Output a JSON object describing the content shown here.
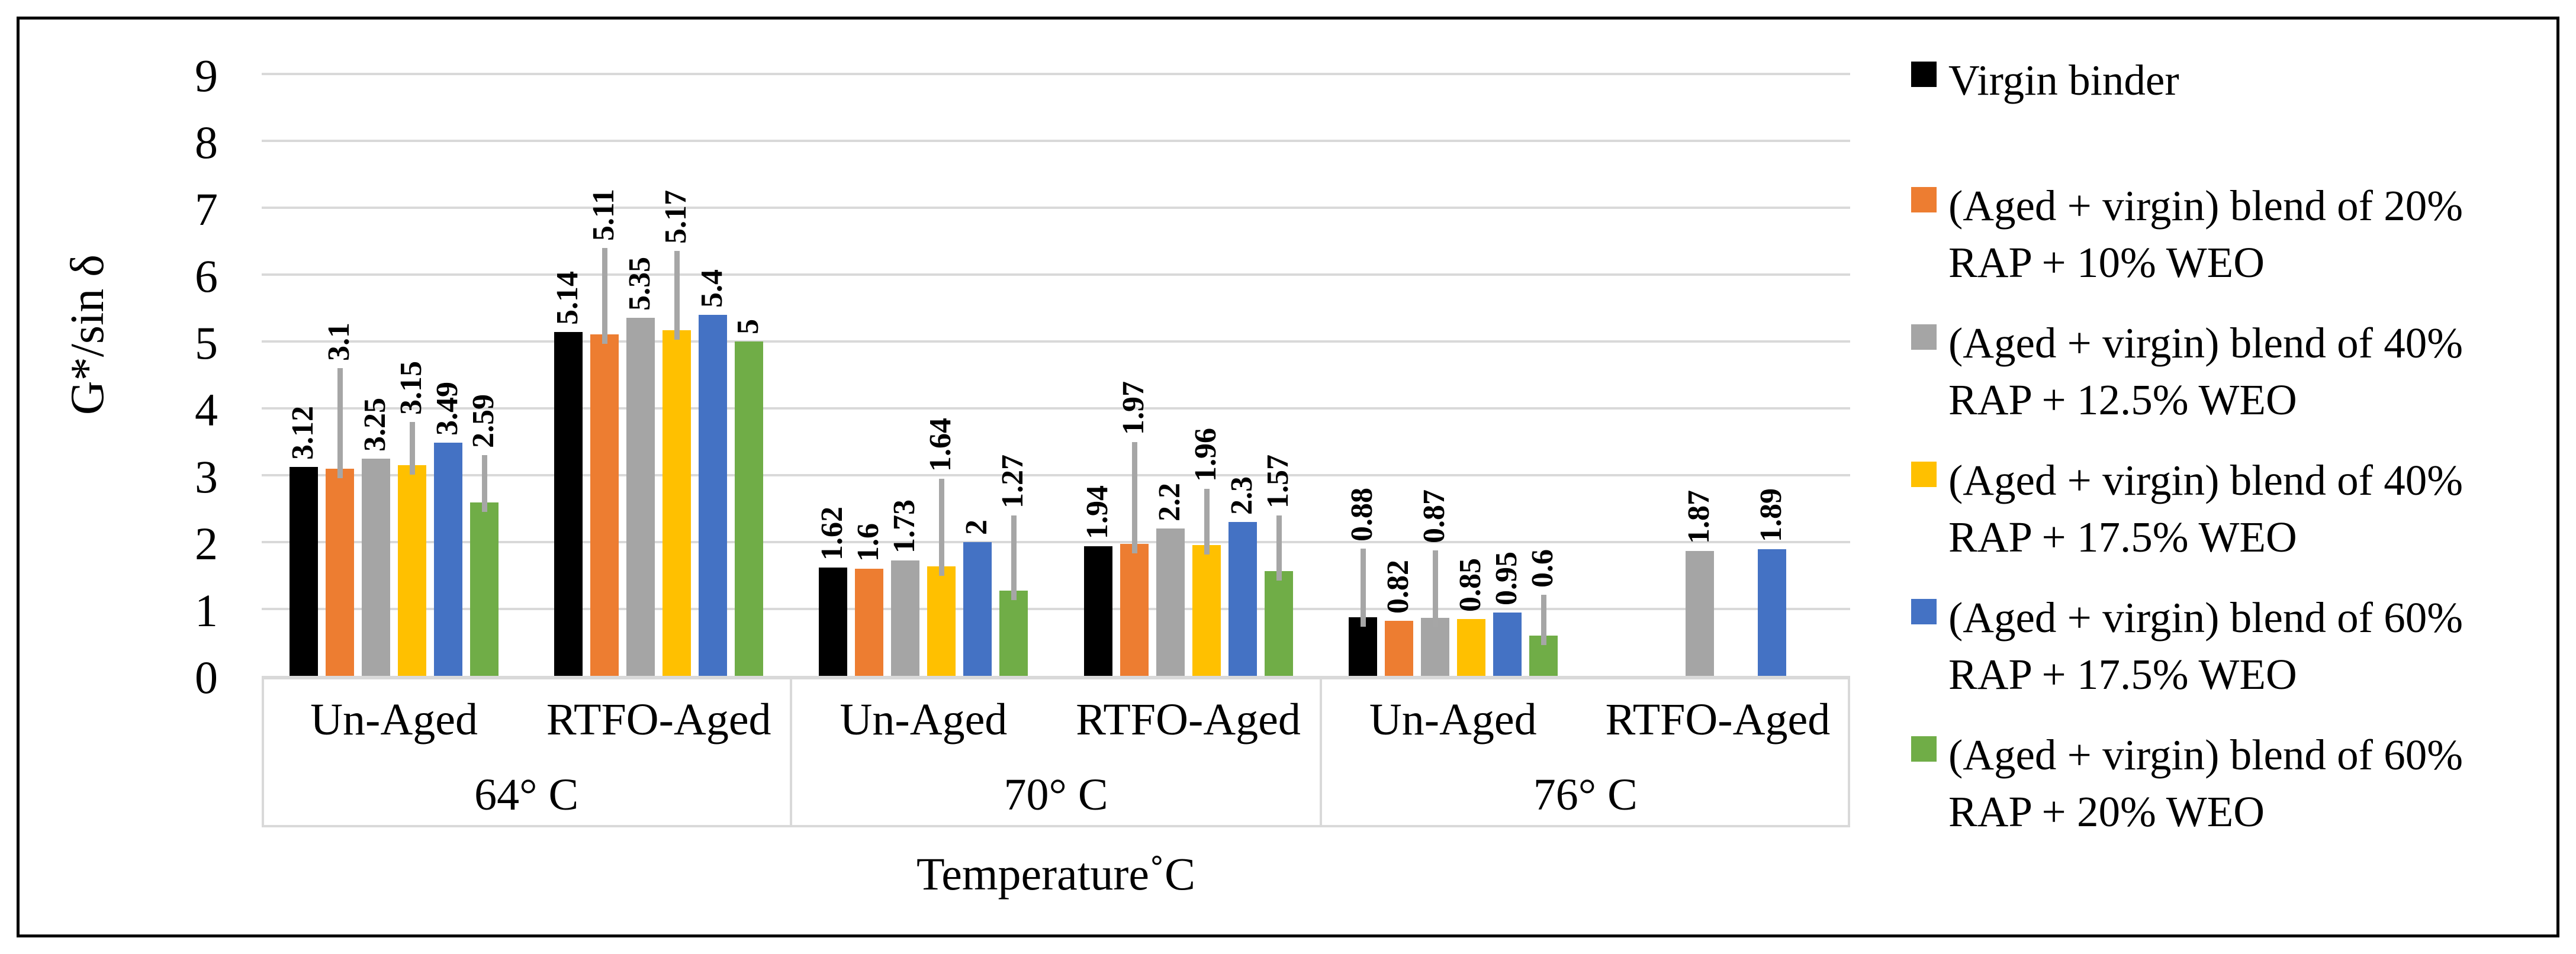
{
  "figure": {
    "background": "#ffffff",
    "border_color": "#000000"
  },
  "chart_data": {
    "type": "bar",
    "title": "",
    "ylabel": "G*/sin δ",
    "xlabel": "Temperature˚C",
    "ylim": [
      0,
      9
    ],
    "yticks": [
      "0",
      "1",
      "2",
      "3",
      "4",
      "5",
      "6",
      "7",
      "8",
      "9"
    ],
    "grid": true,
    "legend_position": "right",
    "colors": {
      "gridline": "#D9D9D9",
      "axis_line": "#D9D9D9",
      "table_border": "#D9D9D9",
      "error_bar": "#A6A6A6"
    },
    "series": [
      {
        "name": "Virgin binder",
        "color": "#000000",
        "legend_lines": [
          "Virgin binder"
        ]
      },
      {
        "name": "(Aged + virgin) blend of 20% RAP + 10% WEO",
        "color": "#ED7D31",
        "legend_lines": [
          "(Aged + virgin) blend of 20%",
          "RAP + 10% WEO"
        ]
      },
      {
        "name": "(Aged + virgin) blend of 40% RAP + 12.5% WEO",
        "color": "#A5A5A5",
        "legend_lines": [
          "(Aged + virgin) blend of 40%",
          "RAP + 12.5% WEO"
        ]
      },
      {
        "name": "(Aged + virgin) blend of 40% RAP + 17.5% WEO",
        "color": "#FFC000",
        "legend_lines": [
          "(Aged + virgin) blend of 40%",
          "RAP + 17.5% WEO"
        ]
      },
      {
        "name": "(Aged + virgin) blend of 60% RAP + 17.5% WEO",
        "color": "#4472C4",
        "legend_lines": [
          "(Aged + virgin) blend of 60%",
          "RAP + 17.5% WEO"
        ]
      },
      {
        "name": "(Aged + virgin) blend of 60% RAP + 20% WEO",
        "color": "#70AD47",
        "legend_lines": [
          "(Aged + virgin) blend of 60%",
          "RAP + 20% WEO"
        ]
      }
    ],
    "groups": [
      {
        "temp": "64° C",
        "clusters": [
          {
            "aging": "Un-Aged",
            "values": [
              3.12,
              3.1,
              3.25,
              3.15,
              3.49,
              2.59
            ],
            "labels": [
              "3.12",
              "3.1",
              "3.25",
              "3.15",
              "3.49",
              "2.59"
            ],
            "error_top": [
              null,
              4.6,
              null,
              3.8,
              null,
              3.3
            ]
          },
          {
            "aging": "RTFO-Aged",
            "values": [
              5.14,
              5.11,
              5.35,
              5.17,
              5.4,
              5
            ],
            "labels": [
              "5.14",
              "5.11",
              "5.35",
              "5.17",
              "5.4",
              "5"
            ],
            "error_top": [
              null,
              6.4,
              null,
              6.35,
              null,
              null
            ]
          }
        ]
      },
      {
        "temp": "70° C",
        "clusters": [
          {
            "aging": "Un-Aged",
            "values": [
              1.62,
              1.6,
              1.73,
              1.64,
              2,
              1.27
            ],
            "labels": [
              "1.62",
              "1.6",
              "1.73",
              "1.64",
              "2",
              "1.27"
            ],
            "error_top": [
              null,
              null,
              null,
              2.95,
              null,
              2.4
            ]
          },
          {
            "aging": "RTFO-Aged",
            "values": [
              1.94,
              1.97,
              2.2,
              1.96,
              2.3,
              1.57
            ],
            "labels": [
              "1.94",
              "1.97",
              "2.2",
              "1.96",
              "2.3",
              "1.57"
            ],
            "error_top": [
              null,
              3.5,
              null,
              2.8,
              null,
              2.4
            ]
          }
        ]
      },
      {
        "temp": "76° C",
        "clusters": [
          {
            "aging": "Un-Aged",
            "values": [
              0.88,
              0.82,
              0.87,
              0.85,
              0.95,
              0.6
            ],
            "labels": [
              "0.88",
              "0.82",
              "0.87",
              "0.85",
              "0.95",
              "0.6"
            ],
            "error_top": [
              1.9,
              null,
              1.88,
              null,
              null,
              1.21
            ]
          },
          {
            "aging": "RTFO-Aged",
            "values": [
              null,
              null,
              1.87,
              null,
              1.89,
              null
            ],
            "labels": [
              null,
              null,
              "1.87",
              null,
              "1.89",
              null
            ],
            "error_top": [
              null,
              null,
              null,
              null,
              null,
              null
            ]
          }
        ]
      }
    ]
  }
}
